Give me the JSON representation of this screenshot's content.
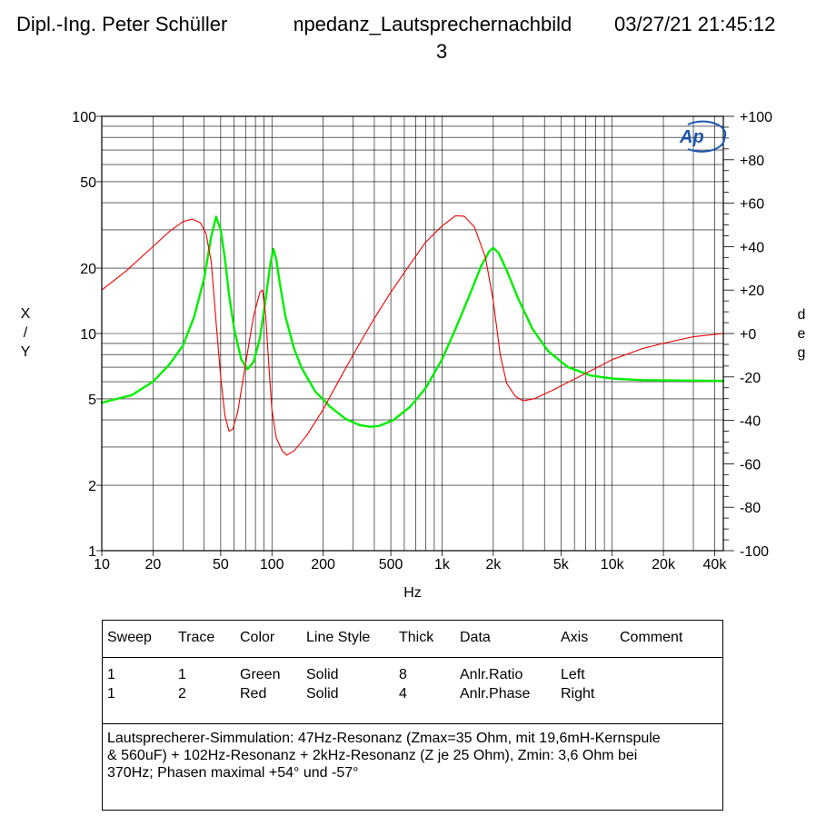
{
  "header": {
    "left": "Dipl.-Ing. Peter Schüller",
    "middle": "Impedanz_Lautsprechernachbild",
    "right": "03/27/21 21:45:12",
    "line2": "3"
  },
  "logo_text": "Ap",
  "chart_data": {
    "type": "line",
    "x_scale": "log",
    "xlim": [
      10,
      45000
    ],
    "xlabel": "Hz",
    "x_ticks": [
      10,
      20,
      50,
      100,
      200,
      500,
      1000,
      2000,
      5000,
      10000,
      20000,
      40000
    ],
    "x_tick_labels": [
      "10",
      "20",
      "50",
      "100",
      "200",
      "500",
      "1k",
      "2k",
      "5k",
      "10k",
      "20k",
      "40k"
    ],
    "left_axis": {
      "label": "X\n/\nY",
      "scale": "log",
      "lim": [
        1,
        100
      ],
      "ticks": [
        1,
        2,
        5,
        10,
        20,
        50,
        100
      ],
      "tick_labels": [
        "1",
        "2",
        "5",
        "10",
        "20",
        "50",
        "100"
      ]
    },
    "right_axis": {
      "label": "d\ne\ng",
      "scale": "linear",
      "lim": [
        -100,
        100
      ],
      "ticks": [
        -100,
        -80,
        -60,
        -40,
        -20,
        0,
        20,
        40,
        60,
        80,
        100
      ],
      "tick_labels": [
        "-100",
        "-80",
        "-60",
        "-40",
        "-20",
        "+0",
        "+20",
        "+40",
        "+60",
        "+80",
        "+100"
      ]
    },
    "grid": true,
    "series": [
      {
        "axis": "left",
        "color": "#00ee00",
        "width": 2.4,
        "points": [
          [
            10,
            4.8
          ],
          [
            15,
            5.2
          ],
          [
            20,
            6.0
          ],
          [
            25,
            7.2
          ],
          [
            30,
            8.8
          ],
          [
            35,
            12.0
          ],
          [
            40,
            18.0
          ],
          [
            44,
            28.0
          ],
          [
            47,
            34.5
          ],
          [
            50,
            30.0
          ],
          [
            53,
            22.0
          ],
          [
            56,
            15.0
          ],
          [
            60,
            10.5
          ],
          [
            66,
            7.6
          ],
          [
            72,
            6.85
          ],
          [
            78,
            7.4
          ],
          [
            85,
            9.5
          ],
          [
            92,
            14.5
          ],
          [
            98,
            21.0
          ],
          [
            102,
            24.5
          ],
          [
            106,
            22.0
          ],
          [
            112,
            16.5
          ],
          [
            120,
            12.0
          ],
          [
            135,
            8.5
          ],
          [
            150,
            6.9
          ],
          [
            180,
            5.4
          ],
          [
            220,
            4.6
          ],
          [
            270,
            4.05
          ],
          [
            330,
            3.78
          ],
          [
            380,
            3.72
          ],
          [
            430,
            3.76
          ],
          [
            520,
            4.0
          ],
          [
            650,
            4.6
          ],
          [
            800,
            5.6
          ],
          [
            1000,
            7.6
          ],
          [
            1200,
            10.5
          ],
          [
            1450,
            15.0
          ],
          [
            1700,
            20.5
          ],
          [
            1900,
            24.0
          ],
          [
            2000,
            24.8
          ],
          [
            2150,
            23.5
          ],
          [
            2400,
            19.5
          ],
          [
            2800,
            14.5
          ],
          [
            3400,
            10.5
          ],
          [
            4200,
            8.3
          ],
          [
            5500,
            7.0
          ],
          [
            7500,
            6.4
          ],
          [
            10000,
            6.2
          ],
          [
            15000,
            6.1
          ],
          [
            25000,
            6.08
          ],
          [
            45000,
            6.05
          ]
        ]
      },
      {
        "axis": "right",
        "color": "#ee0000",
        "width": 1.1,
        "points": [
          [
            10,
            20
          ],
          [
            14,
            29
          ],
          [
            20,
            40
          ],
          [
            25,
            47
          ],
          [
            30,
            51.5
          ],
          [
            34,
            52.7
          ],
          [
            38,
            51
          ],
          [
            41,
            46
          ],
          [
            44,
            33
          ],
          [
            47,
            5
          ],
          [
            50,
            -20
          ],
          [
            53,
            -38
          ],
          [
            56,
            -45
          ],
          [
            59,
            -44
          ],
          [
            63,
            -36
          ],
          [
            70,
            -14
          ],
          [
            78,
            8
          ],
          [
            85,
            19
          ],
          [
            88,
            20
          ],
          [
            92,
            8
          ],
          [
            96,
            -15
          ],
          [
            100,
            -35
          ],
          [
            106,
            -48
          ],
          [
            115,
            -54
          ],
          [
            122,
            -56
          ],
          [
            135,
            -54
          ],
          [
            160,
            -47
          ],
          [
            200,
            -35
          ],
          [
            250,
            -21
          ],
          [
            320,
            -6
          ],
          [
            400,
            7
          ],
          [
            500,
            19
          ],
          [
            650,
            32
          ],
          [
            800,
            42
          ],
          [
            1000,
            49.5
          ],
          [
            1200,
            54.2
          ],
          [
            1350,
            54
          ],
          [
            1550,
            49
          ],
          [
            1800,
            35
          ],
          [
            2000,
            15
          ],
          [
            2200,
            -10
          ],
          [
            2400,
            -23
          ],
          [
            2700,
            -29
          ],
          [
            3000,
            -31
          ],
          [
            3500,
            -30
          ],
          [
            4500,
            -26
          ],
          [
            6000,
            -21
          ],
          [
            8000,
            -16
          ],
          [
            10000,
            -12
          ],
          [
            15000,
            -7
          ],
          [
            20000,
            -4.5
          ],
          [
            30000,
            -1.5
          ],
          [
            45000,
            0
          ]
        ]
      }
    ]
  },
  "legend": {
    "headers": [
      "Sweep",
      "Trace",
      "Color",
      "Line Style",
      "Thick",
      "Data",
      "Axis",
      "Comment"
    ],
    "rows": [
      [
        "1",
        "1",
        "Green",
        "Solid",
        "8",
        "Anlr.Ratio",
        "Left",
        ""
      ],
      [
        "1",
        "2",
        "Red",
        "Solid",
        "4",
        "Anlr.Phase",
        "Right",
        ""
      ]
    ],
    "comment_lines": [
      "Lautsprecherer-Simmulation: 47Hz-Resonanz (Zmax=35 Ohm, mit 19,6mH-Kernspule",
      "& 560uF) + 102Hz-Resonanz + 2kHz-Resonanz (Z je 25 Ohm), Zmin: 3,6 Ohm bei",
      "370Hz; Phasen maximal +54° und -57°"
    ]
  }
}
